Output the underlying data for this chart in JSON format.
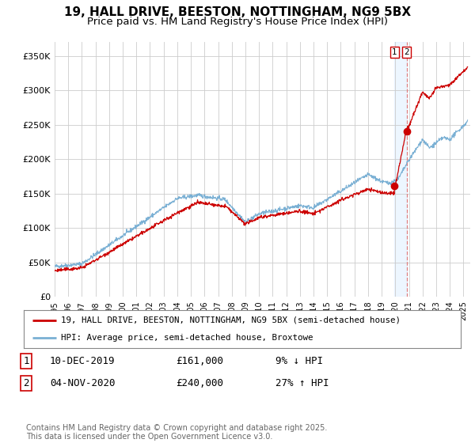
{
  "title": "19, HALL DRIVE, BEESTON, NOTTINGHAM, NG9 5BX",
  "subtitle": "Price paid vs. HM Land Registry's House Price Index (HPI)",
  "title_fontsize": 11,
  "subtitle_fontsize": 9.5,
  "ylim": [
    0,
    370000
  ],
  "xlim_start": 1995,
  "xlim_end": 2025.5,
  "yticks": [
    0,
    50000,
    100000,
    150000,
    200000,
    250000,
    300000,
    350000
  ],
  "ytick_labels": [
    "£0",
    "£50K",
    "£100K",
    "£150K",
    "£200K",
    "£250K",
    "£300K",
    "£350K"
  ],
  "red_line_color": "#cc0000",
  "blue_line_color": "#7ab0d4",
  "grid_color": "#cccccc",
  "background_color": "#ffffff",
  "sale1_x": 2019.94,
  "sale1_y": 161000,
  "sale2_x": 2020.84,
  "sale2_y": 240000,
  "vline_x": 2020.84,
  "legend1_label": "19, HALL DRIVE, BEESTON, NOTTINGHAM, NG9 5BX (semi-detached house)",
  "legend2_label": "HPI: Average price, semi-detached house, Broxtowe",
  "table_row1": [
    "1",
    "10-DEC-2019",
    "£161,000",
    "9% ↓ HPI"
  ],
  "table_row2": [
    "2",
    "04-NOV-2020",
    "£240,000",
    "27% ↑ HPI"
  ],
  "footer": "Contains HM Land Registry data © Crown copyright and database right 2025.\nThis data is licensed under the Open Government Licence v3.0.",
  "footer_fontsize": 7
}
